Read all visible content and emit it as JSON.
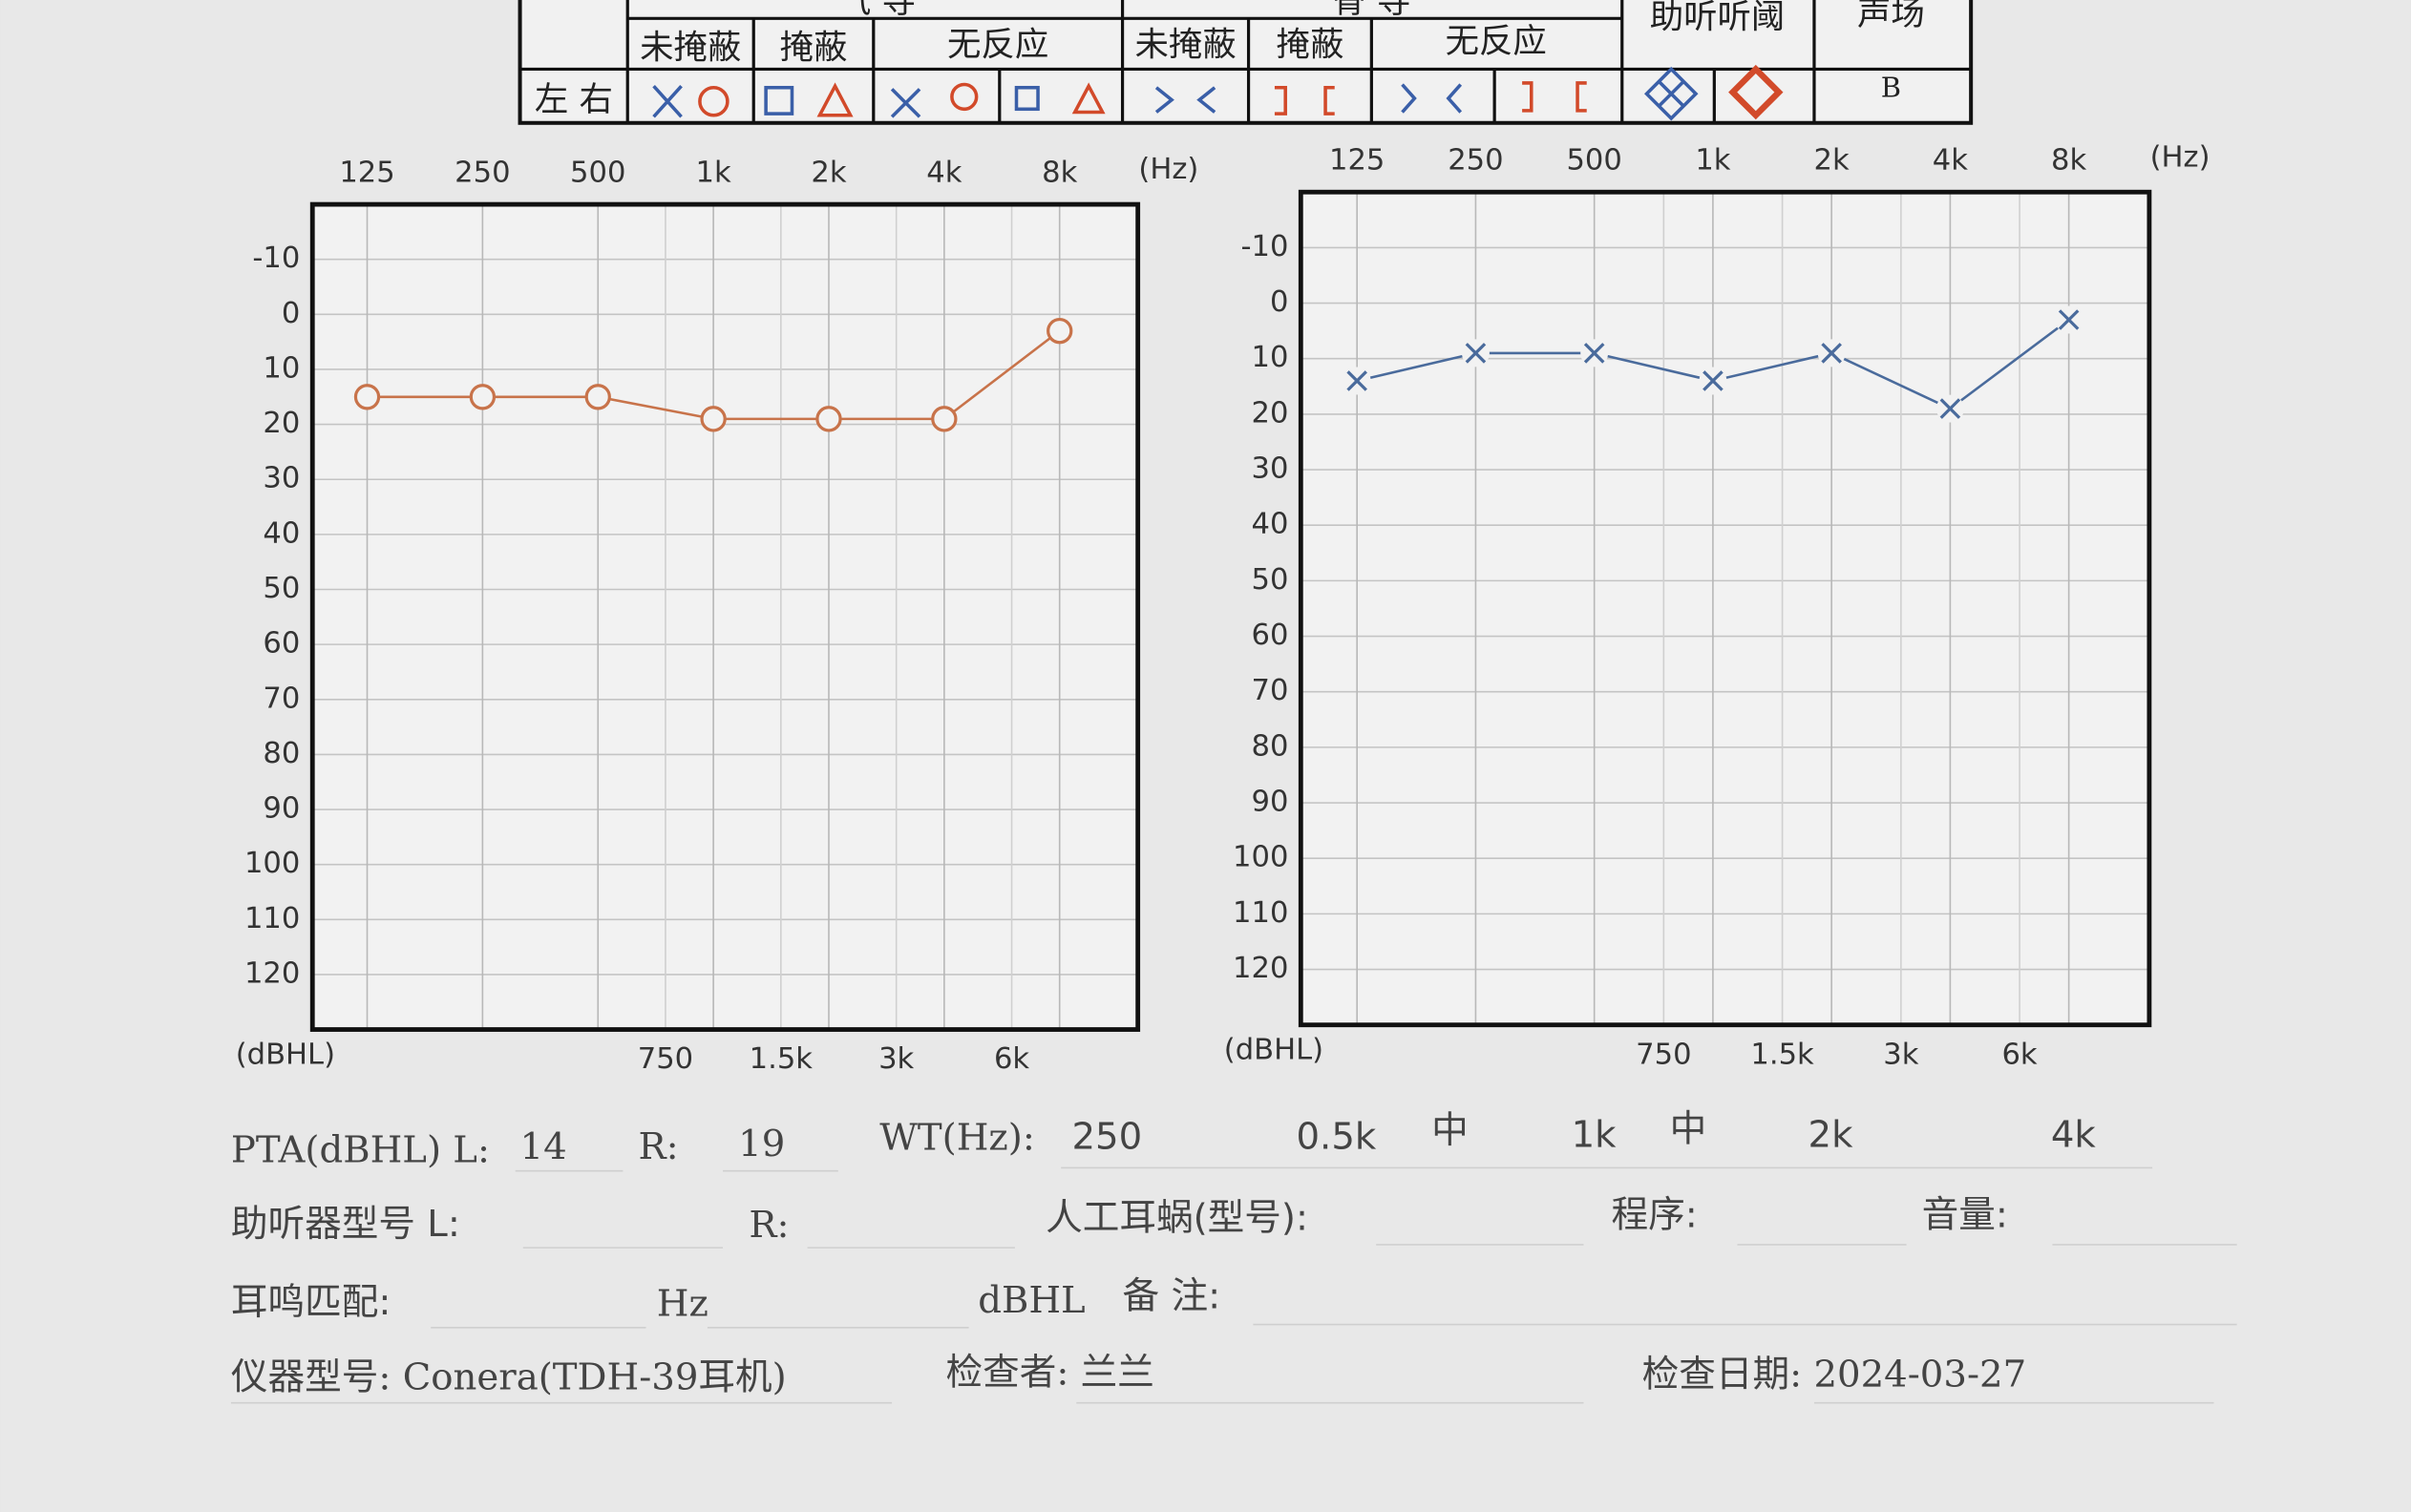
{
  "header_table": {
    "air_conduction": "气 导",
    "bone_conduction": "骨 导",
    "aided_threshold": "助听听阈",
    "sound_field": "声场",
    "air_cols": [
      "未掩蔽",
      "掩蔽",
      "无反应"
    ],
    "bone_cols": [
      "未掩蔽",
      "掩蔽",
      "无反应"
    ],
    "ear_row": "左 右",
    "sound_field_symbol": "B"
  },
  "chart_data": [
    {
      "type": "line",
      "x_scale": "log",
      "y_inverted": true,
      "grid": true,
      "marker": "circle",
      "color": "#c8734a",
      "x_unit": "(Hz)",
      "y_unit": "(dBHL)",
      "x": [
        125,
        250,
        500,
        1000,
        2000,
        4000,
        8000
      ],
      "values": [
        15,
        15,
        15,
        19,
        19,
        19,
        3
      ],
      "xlim": [
        90,
        12800
      ],
      "ylim": [
        -20,
        130
      ],
      "xticks": [
        125,
        250,
        500,
        {
          "value": 1000,
          "label": "1k"
        },
        {
          "value": 2000,
          "label": "2k"
        },
        {
          "value": 4000,
          "label": "4k"
        },
        {
          "value": 8000,
          "label": "8k"
        }
      ],
      "xticks_secondary": [
        750,
        {
          "value": 1500,
          "label": "1.5k"
        },
        {
          "value": 3000,
          "label": "3k"
        },
        {
          "value": 6000,
          "label": "6k"
        }
      ],
      "yticks": [
        -10,
        0,
        10,
        20,
        30,
        40,
        50,
        60,
        70,
        80,
        90,
        100,
        110,
        120
      ]
    },
    {
      "type": "line",
      "x_scale": "log",
      "y_inverted": true,
      "grid": true,
      "marker": "cross",
      "color": "#4a6b9c",
      "x_unit": "(Hz)",
      "y_unit": "(dBHL)",
      "x": [
        125,
        250,
        500,
        1000,
        2000,
        4000,
        8000
      ],
      "values": [
        14,
        9,
        9,
        14,
        9,
        19,
        3
      ],
      "xlim": [
        90,
        12800
      ],
      "ylim": [
        -20,
        130
      ],
      "xticks": [
        125,
        250,
        500,
        {
          "value": 1000,
          "label": "1k"
        },
        {
          "value": 2000,
          "label": "2k"
        },
        {
          "value": 4000,
          "label": "4k"
        },
        {
          "value": 8000,
          "label": "8k"
        }
      ],
      "xticks_secondary": [
        750,
        {
          "value": 1500,
          "label": "1.5k"
        },
        {
          "value": 3000,
          "label": "3k"
        },
        {
          "value": 6000,
          "label": "6k"
        }
      ],
      "yticks": [
        -10,
        0,
        10,
        20,
        30,
        40,
        50,
        60,
        70,
        80,
        90,
        100,
        110,
        120
      ]
    }
  ],
  "form": {
    "pta_label": "PTA(dBHL) L:",
    "pta_left": "14",
    "pta_r_label": "R:",
    "pta_right": "19",
    "wt_label": "WT(Hz):",
    "wt_250": "250",
    "wt_500": "0.5k",
    "wt_500_result": "中",
    "wt_1k": "1k",
    "wt_1k_result": "中",
    "wt_2k": "2k",
    "wt_4k": "4k",
    "hearing_aid_label": "助听器型号 L:",
    "hearing_aid_r_label": "R:",
    "cochlear_label": "人工耳蜗(型号):",
    "program_label": "程序:",
    "volume_label": "音量:",
    "tinnitus_label": "耳鸣匹配:",
    "tinnitus_hz": "Hz",
    "tinnitus_dbhl": "dBHL",
    "remarks_label": "备 注:",
    "device": "仪器型号: Conera(TDH-39耳机)",
    "examiner": "检查者: 兰兰",
    "date": "检查日期: 2024-03-27"
  }
}
